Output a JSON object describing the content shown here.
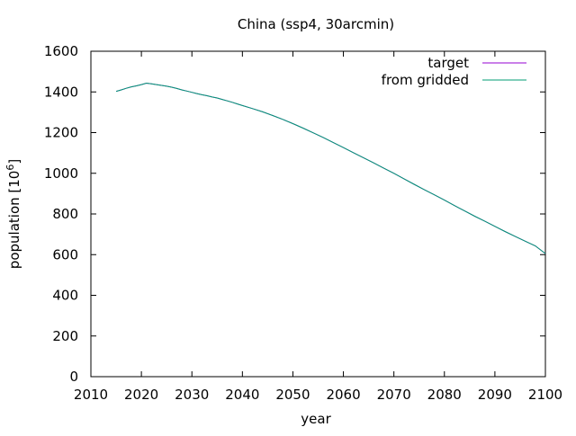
{
  "chart_data": {
    "type": "line",
    "title": "China (ssp4, 30arcmin)",
    "xlabel": "year",
    "ylabel_base": "population [10",
    "ylabel_sup": "6",
    "ylabel_close": "]",
    "xlim": [
      2010,
      2100
    ],
    "ylim": [
      0,
      1600
    ],
    "xticks": [
      2010,
      2020,
      2030,
      2040,
      2050,
      2060,
      2070,
      2080,
      2090,
      2100
    ],
    "yticks": [
      0,
      200,
      400,
      600,
      800,
      1000,
      1200,
      1400,
      1600
    ],
    "grid": false,
    "legend_position": "top-right",
    "series": [
      {
        "name": "target",
        "color": "#9400d3",
        "x": [
          2015,
          2016,
          2017,
          2018,
          2019,
          2020,
          2021,
          2022,
          2023,
          2024,
          2025,
          2026,
          2027,
          2028,
          2029,
          2030,
          2031,
          2032,
          2033,
          2034,
          2035,
          2036,
          2037,
          2038,
          2039,
          2040,
          2042,
          2044,
          2046,
          2048,
          2050,
          2052,
          2054,
          2056,
          2058,
          2060,
          2062,
          2064,
          2066,
          2068,
          2070,
          2072,
          2074,
          2076,
          2078,
          2080,
          2082,
          2084,
          2086,
          2088,
          2090,
          2092,
          2094,
          2096,
          2098,
          2100
        ],
        "y": [
          1403,
          1410,
          1418,
          1425,
          1430,
          1436,
          1443,
          1440,
          1436,
          1432,
          1428,
          1423,
          1417,
          1410,
          1404,
          1398,
          1392,
          1386,
          1381,
          1375,
          1370,
          1363,
          1356,
          1349,
          1341,
          1333,
          1318,
          1302,
          1284,
          1265,
          1244,
          1222,
          1199,
          1176,
          1151,
          1126,
          1101,
          1076,
          1051,
          1025,
          1000,
          973,
          946,
          920,
          894,
          868,
          841,
          815,
          789,
          764,
          739,
          714,
          690,
          666,
          643,
          605
        ]
      },
      {
        "name": "from gridded",
        "color": "#009e73",
        "x": [
          2015,
          2016,
          2017,
          2018,
          2019,
          2020,
          2021,
          2022,
          2023,
          2024,
          2025,
          2026,
          2027,
          2028,
          2029,
          2030,
          2031,
          2032,
          2033,
          2034,
          2035,
          2036,
          2037,
          2038,
          2039,
          2040,
          2042,
          2044,
          2046,
          2048,
          2050,
          2052,
          2054,
          2056,
          2058,
          2060,
          2062,
          2064,
          2066,
          2068,
          2070,
          2072,
          2074,
          2076,
          2078,
          2080,
          2082,
          2084,
          2086,
          2088,
          2090,
          2092,
          2094,
          2096,
          2098,
          2100
        ],
        "y": [
          1403,
          1410,
          1418,
          1425,
          1430,
          1436,
          1443,
          1440,
          1436,
          1432,
          1428,
          1423,
          1417,
          1410,
          1404,
          1398,
          1392,
          1386,
          1381,
          1375,
          1370,
          1363,
          1356,
          1349,
          1341,
          1333,
          1318,
          1302,
          1284,
          1265,
          1244,
          1222,
          1199,
          1176,
          1151,
          1126,
          1101,
          1076,
          1051,
          1025,
          1000,
          973,
          946,
          920,
          894,
          868,
          841,
          815,
          789,
          764,
          739,
          714,
          690,
          666,
          643,
          605
        ]
      }
    ]
  }
}
